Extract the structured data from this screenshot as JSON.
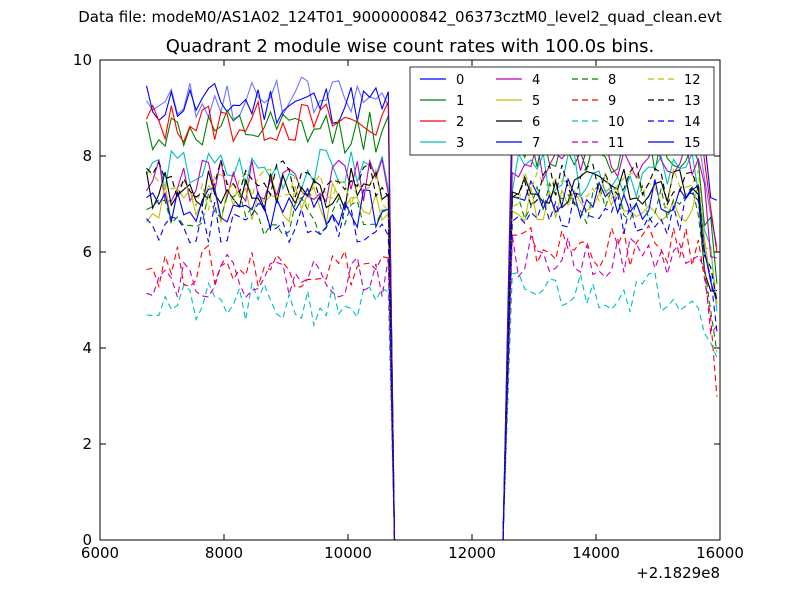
{
  "figure": {
    "suptitle": "Data file: modeM0/AS1A02_124T01_9000000842_06373cztM0_level2_quad_clean.evt"
  },
  "chart_data": {
    "type": "line",
    "title": "Quadrant 2 module wise count rates with 100.0s bins.",
    "xlabel": "",
    "ylabel": "",
    "xlim": [
      6000,
      16000
    ],
    "ylim": [
      0,
      10
    ],
    "x_offset_label": "+2.1829e8",
    "xticks": [
      "6000",
      "8000",
      "10000",
      "12000",
      "14000",
      "16000"
    ],
    "yticks": [
      "0",
      "2",
      "4",
      "6",
      "8",
      "10"
    ],
    "legend_location": "top-right",
    "legend_columns": 4,
    "gap": {
      "start": 10750,
      "end": 12500,
      "value": 0
    },
    "segments": [
      {
        "start": 6750,
        "end": 10650,
        "step": 100
      },
      {
        "start": 12650,
        "end": 15950,
        "step": 100
      }
    ],
    "series": [
      {
        "name": "0",
        "color": "#0000ff",
        "style": "solid",
        "level1": 9.1,
        "level2": 8.9,
        "seed": 11
      },
      {
        "name": "1",
        "color": "#008000",
        "style": "solid",
        "level1": 8.5,
        "level2": 8.1,
        "seed": 12
      },
      {
        "name": "2",
        "color": "#ff0000",
        "style": "solid",
        "level1": 8.7,
        "level2": 8.8,
        "seed": 13
      },
      {
        "name": "3",
        "color": "#00bfbf",
        "style": "solid",
        "level1": 7.7,
        "level2": 7.6,
        "seed": 14
      },
      {
        "name": "4",
        "color": "#bf00bf",
        "style": "solid",
        "level1": 7.5,
        "level2": 7.9,
        "seed": 15
      },
      {
        "name": "5",
        "color": "#bfbf00",
        "style": "solid",
        "level1": 7.0,
        "level2": 7.0,
        "seed": 16
      },
      {
        "name": "6",
        "color": "#000000",
        "style": "solid",
        "level1": 7.3,
        "level2": 7.3,
        "seed": 17
      },
      {
        "name": "7",
        "color": "#0000ff",
        "style": "solid",
        "level1": 6.9,
        "level2": 7.1,
        "seed": 18
      },
      {
        "name": "8",
        "color": "#008000",
        "style": "dashed",
        "level1": 6.8,
        "level2": 7.0,
        "seed": 19
      },
      {
        "name": "9",
        "color": "#ff0000",
        "style": "dashed",
        "level1": 5.7,
        "level2": 6.1,
        "seed": 20
      },
      {
        "name": "10",
        "color": "#00bfbf",
        "style": "dashed",
        "level1": 4.9,
        "level2": 5.2,
        "seed": 21
      },
      {
        "name": "11",
        "color": "#bf00bf",
        "style": "dashed",
        "level1": 5.5,
        "level2": 5.9,
        "seed": 22
      },
      {
        "name": "12",
        "color": "#bfbf00",
        "style": "dashed",
        "level1": 7.3,
        "level2": 7.3,
        "seed": 23
      },
      {
        "name": "13",
        "color": "#000000",
        "style": "dashed",
        "level1": 7.5,
        "level2": 7.4,
        "seed": 24
      },
      {
        "name": "14",
        "color": "#0000ff",
        "style": "dashed",
        "level1": 6.6,
        "level2": 6.8,
        "seed": 25
      },
      {
        "name": "15",
        "color": "#0000ff",
        "style": "solid",
        "level1": 9.2,
        "level2": 8.6,
        "seed": 26
      }
    ]
  }
}
